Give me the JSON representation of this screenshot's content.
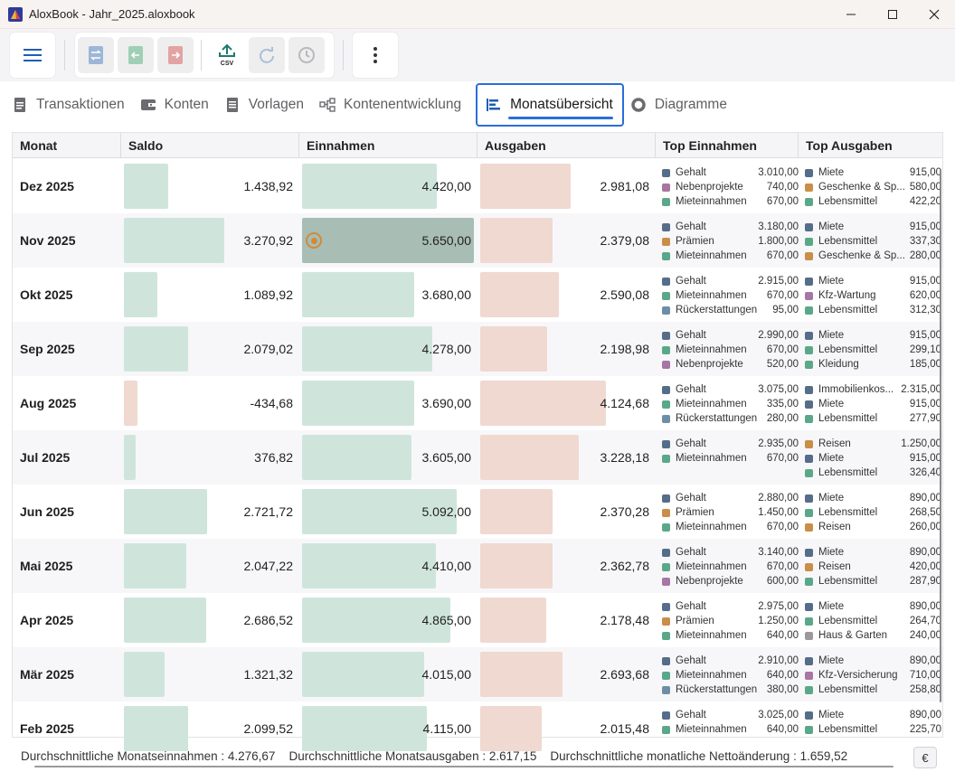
{
  "window": {
    "title": "AloxBook - Jahr_2025.aloxbook",
    "minimize_icon": "minimize-icon",
    "maximize_icon": "maximize-icon",
    "close_icon": "close-icon"
  },
  "toolbar": {
    "menu_icon": "hamburger-menu-icon",
    "buttons": [
      {
        "icon": "transfer-icon",
        "enabled": false
      },
      {
        "icon": "income-icon",
        "enabled": false
      },
      {
        "icon": "expense-icon",
        "enabled": false
      },
      {
        "icon": "csv-export-icon",
        "label": "CSV",
        "enabled": true
      },
      {
        "icon": "redo-icon",
        "enabled": false
      },
      {
        "icon": "history-icon",
        "enabled": false
      }
    ],
    "more_icon": "more-vertical-icon"
  },
  "tabs": [
    {
      "label": "Transaktionen",
      "icon": "document-icon",
      "active": false
    },
    {
      "label": "Konten",
      "icon": "wallet-icon",
      "active": false
    },
    {
      "label": "Vorlagen",
      "icon": "template-icon",
      "active": false
    },
    {
      "label": "Kontenentwicklung",
      "icon": "flow-icon",
      "active": false
    },
    {
      "label": "Monatsübersicht",
      "icon": "bar-list-icon",
      "active": true
    },
    {
      "label": "Diagramme",
      "icon": "donut-icon",
      "active": false
    }
  ],
  "table": {
    "headers": {
      "month": "Monat",
      "balance": "Saldo",
      "income": "Einnahmen",
      "expenses": "Ausgaben",
      "top_income": "Top Einnahmen",
      "top_expenses": "Top Ausgaben"
    },
    "rows": [
      {
        "month": "Dez 2025",
        "balance": "1.438,92",
        "balance_v": 1438.92,
        "income": "4.420,00",
        "income_v": 4420,
        "expenses": "2.981,08",
        "expenses_v": 2981.08,
        "top_income": [
          {
            "name": "Gehalt",
            "amount": "3.010,00",
            "color": "#566d8a"
          },
          {
            "name": "Nebenprojekte",
            "amount": "740,00",
            "color": "#a776a2"
          },
          {
            "name": "Mieteinnahmen",
            "amount": "670,00",
            "color": "#5aa889"
          }
        ],
        "top_expenses": [
          {
            "name": "Miete",
            "amount": "915,00",
            "color": "#566d8a"
          },
          {
            "name": "Geschenke & Sp...",
            "amount": "580,00",
            "color": "#c98e48"
          },
          {
            "name": "Lebensmittel",
            "amount": "422,20",
            "color": "#5aa889"
          }
        ]
      },
      {
        "month": "Nov 2025",
        "balance": "3.270,92",
        "balance_v": 3270.92,
        "income": "5.650,00",
        "income_v": 5650,
        "expenses": "2.379,08",
        "expenses_v": 2379.08,
        "highlight": true,
        "top_income": [
          {
            "name": "Gehalt",
            "amount": "3.180,00",
            "color": "#566d8a"
          },
          {
            "name": "Prämien",
            "amount": "1.800,00",
            "color": "#c98e48"
          },
          {
            "name": "Mieteinnahmen",
            "amount": "670,00",
            "color": "#5aa889"
          }
        ],
        "top_expenses": [
          {
            "name": "Miete",
            "amount": "915,00",
            "color": "#566d8a"
          },
          {
            "name": "Lebensmittel",
            "amount": "337,30",
            "color": "#5aa889"
          },
          {
            "name": "Geschenke & Sp...",
            "amount": "280,00",
            "color": "#c98e48"
          }
        ]
      },
      {
        "month": "Okt 2025",
        "balance": "1.089,92",
        "balance_v": 1089.92,
        "income": "3.680,00",
        "income_v": 3680,
        "expenses": "2.590,08",
        "expenses_v": 2590.08,
        "top_income": [
          {
            "name": "Gehalt",
            "amount": "2.915,00",
            "color": "#566d8a"
          },
          {
            "name": "Mieteinnahmen",
            "amount": "670,00",
            "color": "#5aa889"
          },
          {
            "name": "Rückerstattungen",
            "amount": "95,00",
            "color": "#6e8ea8"
          }
        ],
        "top_expenses": [
          {
            "name": "Miete",
            "amount": "915,00",
            "color": "#566d8a"
          },
          {
            "name": "Kfz-Wartung",
            "amount": "620,00",
            "color": "#a776a2"
          },
          {
            "name": "Lebensmittel",
            "amount": "312,30",
            "color": "#5aa889"
          }
        ]
      },
      {
        "month": "Sep 2025",
        "balance": "2.079,02",
        "balance_v": 2079.02,
        "income": "4.278,00",
        "income_v": 4278,
        "expenses": "2.198,98",
        "expenses_v": 2198.98,
        "top_income": [
          {
            "name": "Gehalt",
            "amount": "2.990,00",
            "color": "#566d8a"
          },
          {
            "name": "Mieteinnahmen",
            "amount": "670,00",
            "color": "#5aa889"
          },
          {
            "name": "Nebenprojekte",
            "amount": "520,00",
            "color": "#a776a2"
          }
        ],
        "top_expenses": [
          {
            "name": "Miete",
            "amount": "915,00",
            "color": "#566d8a"
          },
          {
            "name": "Lebensmittel",
            "amount": "299,10",
            "color": "#5aa889"
          },
          {
            "name": "Kleidung",
            "amount": "185,00",
            "color": "#5aa889"
          }
        ]
      },
      {
        "month": "Aug 2025",
        "balance": "-434,68",
        "balance_v": -434.68,
        "income": "3.690,00",
        "income_v": 3690,
        "expenses": "4.124,68",
        "expenses_v": 4124.68,
        "top_income": [
          {
            "name": "Gehalt",
            "amount": "3.075,00",
            "color": "#566d8a"
          },
          {
            "name": "Mieteinnahmen",
            "amount": "335,00",
            "color": "#5aa889"
          },
          {
            "name": "Rückerstattungen",
            "amount": "280,00",
            "color": "#6e8ea8"
          }
        ],
        "top_expenses": [
          {
            "name": "Immobilienkos...",
            "amount": "2.315,00",
            "color": "#566d8a"
          },
          {
            "name": "Miete",
            "amount": "915,00",
            "color": "#566d8a"
          },
          {
            "name": "Lebensmittel",
            "amount": "277,90",
            "color": "#5aa889"
          }
        ]
      },
      {
        "month": "Jul 2025",
        "balance": "376,82",
        "balance_v": 376.82,
        "income": "3.605,00",
        "income_v": 3605,
        "expenses": "3.228,18",
        "expenses_v": 3228.18,
        "top_income": [
          {
            "name": "Gehalt",
            "amount": "2.935,00",
            "color": "#566d8a"
          },
          {
            "name": "Mieteinnahmen",
            "amount": "670,00",
            "color": "#5aa889"
          }
        ],
        "top_expenses": [
          {
            "name": "Reisen",
            "amount": "1.250,00",
            "color": "#c98e48"
          },
          {
            "name": "Miete",
            "amount": "915,00",
            "color": "#566d8a"
          },
          {
            "name": "Lebensmittel",
            "amount": "326,40",
            "color": "#5aa889"
          }
        ]
      },
      {
        "month": "Jun 2025",
        "balance": "2.721,72",
        "balance_v": 2721.72,
        "income": "5.092,00",
        "income_v": 5092,
        "expenses": "2.370,28",
        "expenses_v": 2370.28,
        "top_income": [
          {
            "name": "Gehalt",
            "amount": "2.880,00",
            "color": "#566d8a"
          },
          {
            "name": "Prämien",
            "amount": "1.450,00",
            "color": "#c98e48"
          },
          {
            "name": "Mieteinnahmen",
            "amount": "670,00",
            "color": "#5aa889"
          }
        ],
        "top_expenses": [
          {
            "name": "Miete",
            "amount": "890,00",
            "color": "#566d8a"
          },
          {
            "name": "Lebensmittel",
            "amount": "268,50",
            "color": "#5aa889"
          },
          {
            "name": "Reisen",
            "amount": "260,00",
            "color": "#c98e48"
          }
        ]
      },
      {
        "month": "Mai 2025",
        "balance": "2.047,22",
        "balance_v": 2047.22,
        "income": "4.410,00",
        "income_v": 4410,
        "expenses": "2.362,78",
        "expenses_v": 2362.78,
        "top_income": [
          {
            "name": "Gehalt",
            "amount": "3.140,00",
            "color": "#566d8a"
          },
          {
            "name": "Mieteinnahmen",
            "amount": "670,00",
            "color": "#5aa889"
          },
          {
            "name": "Nebenprojekte",
            "amount": "600,00",
            "color": "#a776a2"
          }
        ],
        "top_expenses": [
          {
            "name": "Miete",
            "amount": "890,00",
            "color": "#566d8a"
          },
          {
            "name": "Reisen",
            "amount": "420,00",
            "color": "#c98e48"
          },
          {
            "name": "Lebensmittel",
            "amount": "287,90",
            "color": "#5aa889"
          }
        ]
      },
      {
        "month": "Apr 2025",
        "balance": "2.686,52",
        "balance_v": 2686.52,
        "income": "4.865,00",
        "income_v": 4865,
        "expenses": "2.178,48",
        "expenses_v": 2178.48,
        "top_income": [
          {
            "name": "Gehalt",
            "amount": "2.975,00",
            "color": "#566d8a"
          },
          {
            "name": "Prämien",
            "amount": "1.250,00",
            "color": "#c98e48"
          },
          {
            "name": "Mieteinnahmen",
            "amount": "640,00",
            "color": "#5aa889"
          }
        ],
        "top_expenses": [
          {
            "name": "Miete",
            "amount": "890,00",
            "color": "#566d8a"
          },
          {
            "name": "Lebensmittel",
            "amount": "264,70",
            "color": "#5aa889"
          },
          {
            "name": "Haus & Garten",
            "amount": "240,00",
            "color": "#9a9a9e"
          }
        ]
      },
      {
        "month": "Mär 2025",
        "balance": "1.321,32",
        "balance_v": 1321.32,
        "income": "4.015,00",
        "income_v": 4015,
        "expenses": "2.693,68",
        "expenses_v": 2693.68,
        "top_income": [
          {
            "name": "Gehalt",
            "amount": "2.910,00",
            "color": "#566d8a"
          },
          {
            "name": "Mieteinnahmen",
            "amount": "640,00",
            "color": "#5aa889"
          },
          {
            "name": "Rückerstattungen",
            "amount": "380,00",
            "color": "#6e8ea8"
          }
        ],
        "top_expenses": [
          {
            "name": "Miete",
            "amount": "890,00",
            "color": "#566d8a"
          },
          {
            "name": "Kfz-Versicherung",
            "amount": "710,00",
            "color": "#a776a2"
          },
          {
            "name": "Lebensmittel",
            "amount": "258,80",
            "color": "#5aa889"
          }
        ]
      },
      {
        "month": "Feb 2025",
        "balance": "2.099,52",
        "balance_v": 2099.52,
        "income": "4.115,00",
        "income_v": 4115,
        "expenses": "2.015,48",
        "expenses_v": 2015.48,
        "top_income": [
          {
            "name": "Gehalt",
            "amount": "3.025,00",
            "color": "#566d8a"
          },
          {
            "name": "Mieteinnahmen",
            "amount": "640,00",
            "color": "#5aa889"
          }
        ],
        "top_expenses": [
          {
            "name": "Miete",
            "amount": "890,00",
            "color": "#566d8a"
          },
          {
            "name": "Lebensmittel",
            "amount": "225,70",
            "color": "#5aa889"
          }
        ]
      }
    ]
  },
  "footer": {
    "avg_income_label": "Durchschnittliche Monatseinnahmen",
    "avg_income": "4.276,67",
    "avg_expenses_label": "Durchschnittliche Monatsausgaben",
    "avg_expenses": "2.617,15",
    "avg_net_label": "Durchschnittliche monatliche Nettoänderung",
    "avg_net": "1.659,52",
    "currency_symbol": "€"
  },
  "colors": {
    "income_bar": "#cfe5dc",
    "income_bar_highlight": "#a8bdb4",
    "expense_bar": "#efd9d0",
    "accent": "#2a6fd6",
    "hover_marker": "#d08b3a"
  }
}
